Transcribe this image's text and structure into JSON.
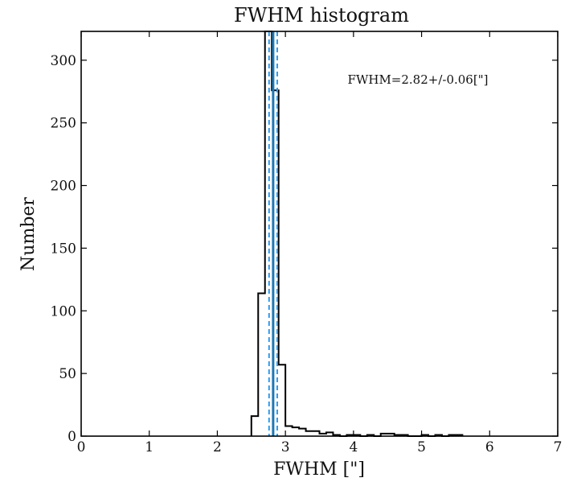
{
  "chart_data": {
    "type": "bar",
    "title": "FWHM histogram",
    "xlabel": "FWHM [\"]",
    "ylabel": "Number",
    "xlim": [
      0,
      7
    ],
    "ylim": [
      0,
      323
    ],
    "xticks": [
      "0",
      "1",
      "2",
      "3",
      "4",
      "5",
      "6",
      "7"
    ],
    "yticks": [
      "0",
      "50",
      "100",
      "150",
      "200",
      "250",
      "300"
    ],
    "annotation": "FWHM=2.82+/-0.06[\"]",
    "grid": false,
    "bin_width": 0.1,
    "bins": [
      {
        "x0": 2.5,
        "count": 16
      },
      {
        "x0": 2.6,
        "count": 114
      },
      {
        "x0": 2.7,
        "count": 323
      },
      {
        "x0": 2.8,
        "count": 276
      },
      {
        "x0": 2.9,
        "count": 57
      },
      {
        "x0": 3.0,
        "count": 8
      },
      {
        "x0": 3.1,
        "count": 7
      },
      {
        "x0": 3.2,
        "count": 6
      },
      {
        "x0": 3.3,
        "count": 4
      },
      {
        "x0": 3.4,
        "count": 4
      },
      {
        "x0": 3.5,
        "count": 2
      },
      {
        "x0": 3.6,
        "count": 3
      },
      {
        "x0": 3.7,
        "count": 1
      },
      {
        "x0": 3.8,
        "count": 0
      },
      {
        "x0": 3.9,
        "count": 1
      },
      {
        "x0": 4.0,
        "count": 1
      },
      {
        "x0": 4.1,
        "count": 0
      },
      {
        "x0": 4.2,
        "count": 1
      },
      {
        "x0": 4.3,
        "count": 0
      },
      {
        "x0": 4.4,
        "count": 2
      },
      {
        "x0": 4.5,
        "count": 2
      },
      {
        "x0": 4.6,
        "count": 1
      },
      {
        "x0": 4.7,
        "count": 1
      },
      {
        "x0": 4.8,
        "count": 0
      },
      {
        "x0": 4.9,
        "count": 0
      },
      {
        "x0": 5.0,
        "count": 1
      },
      {
        "x0": 5.1,
        "count": 0
      },
      {
        "x0": 5.2,
        "count": 1
      },
      {
        "x0": 5.3,
        "count": 0
      },
      {
        "x0": 5.4,
        "count": 1
      },
      {
        "x0": 5.5,
        "count": 1
      }
    ],
    "reference_lines": {
      "mean": 2.82,
      "sigma": 0.06,
      "mean_color": "#1f77b4",
      "sigma_color": "#2a9df4",
      "mean_style": "solid",
      "sigma_style": "dashed"
    },
    "step_color": "#000000"
  }
}
